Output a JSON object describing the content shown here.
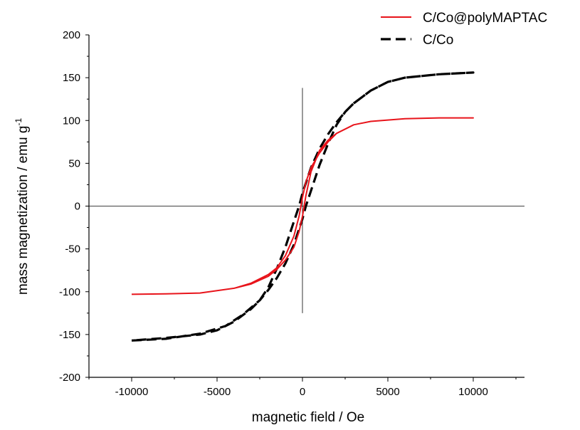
{
  "chart_data": {
    "type": "line",
    "xlabel": "magnetic field / Oe",
    "ylabel_main": "mass magnetization / emu g",
    "ylabel_sup": "-1",
    "xlim": [
      -12500,
      13000
    ],
    "ylim": [
      -200,
      200
    ],
    "x_ticks": [
      -10000,
      -5000,
      0,
      5000,
      10000
    ],
    "x_tick_labels": [
      "-10000",
      "-5000",
      "0",
      "5000",
      "10000"
    ],
    "y_ticks": [
      -200,
      -150,
      -100,
      -50,
      0,
      50,
      100,
      150,
      200
    ],
    "y_tick_labels": [
      "-200",
      "-150",
      "-100",
      "-50",
      "0",
      "50",
      "100",
      "150",
      "200"
    ],
    "zero_axes": true,
    "grid": false,
    "legend_position": "top-right",
    "series": [
      {
        "name": "C/Co@polyMAPTAC",
        "color": "#e8141b",
        "style": "solid",
        "upper_branch": [
          [
            -10000,
            -103
          ],
          [
            -8000,
            -102.5
          ],
          [
            -6000,
            -101.5
          ],
          [
            -4000,
            -96
          ],
          [
            -3000,
            -90
          ],
          [
            -2000,
            -80
          ],
          [
            -1500,
            -72
          ],
          [
            -1000,
            -58
          ],
          [
            -500,
            -35
          ],
          [
            -200,
            -12
          ],
          [
            0,
            10
          ],
          [
            200,
            28
          ],
          [
            500,
            45
          ],
          [
            1000,
            62
          ],
          [
            1500,
            75
          ],
          [
            2000,
            85
          ],
          [
            3000,
            95
          ],
          [
            4000,
            99
          ],
          [
            6000,
            102
          ],
          [
            8000,
            103
          ],
          [
            10000,
            103
          ]
        ],
        "lower_branch": [
          [
            10000,
            103
          ],
          [
            8000,
            103
          ],
          [
            6000,
            102
          ],
          [
            4000,
            99
          ],
          [
            3000,
            95
          ],
          [
            2000,
            85
          ],
          [
            1500,
            77
          ],
          [
            1000,
            65
          ],
          [
            500,
            40
          ],
          [
            200,
            12
          ],
          [
            0,
            -12
          ],
          [
            -200,
            -30
          ],
          [
            -500,
            -48
          ],
          [
            -1000,
            -63
          ],
          [
            -1500,
            -74
          ],
          [
            -2000,
            -82
          ],
          [
            -3000,
            -91
          ],
          [
            -4000,
            -96
          ],
          [
            -6000,
            -101.5
          ],
          [
            -8000,
            -102.5
          ],
          [
            -10000,
            -103
          ]
        ]
      },
      {
        "name": "C/Co",
        "color": "#000000",
        "style": "dashed",
        "upper_branch": [
          [
            -10000,
            -157
          ],
          [
            -8000,
            -155
          ],
          [
            -6000,
            -149
          ],
          [
            -4500,
            -140
          ],
          [
            -3500,
            -127
          ],
          [
            -2500,
            -110
          ],
          [
            -2000,
            -98
          ],
          [
            -1500,
            -84
          ],
          [
            -1000,
            -67
          ],
          [
            -500,
            -45
          ],
          [
            0,
            -15
          ],
          [
            200,
            0
          ],
          [
            500,
            18
          ],
          [
            1000,
            48
          ],
          [
            1500,
            73
          ],
          [
            2000,
            95
          ],
          [
            2500,
            110
          ],
          [
            3000,
            120
          ],
          [
            4000,
            135
          ],
          [
            5000,
            145
          ],
          [
            6000,
            150
          ],
          [
            8000,
            154
          ],
          [
            10000,
            156
          ]
        ],
        "lower_branch": [
          [
            10000,
            156
          ],
          [
            8000,
            154
          ],
          [
            6000,
            150
          ],
          [
            5000,
            145
          ],
          [
            4000,
            135
          ],
          [
            3000,
            120
          ],
          [
            2500,
            110
          ],
          [
            2000,
            98
          ],
          [
            1500,
            84
          ],
          [
            1000,
            67
          ],
          [
            500,
            45
          ],
          [
            0,
            15
          ],
          [
            -200,
            0
          ],
          [
            -500,
            -18
          ],
          [
            -1000,
            -48
          ],
          [
            -1500,
            -73
          ],
          [
            -2000,
            -95
          ],
          [
            -2500,
            -110
          ],
          [
            -3000,
            -120
          ],
          [
            -4000,
            -135
          ],
          [
            -5000,
            -145
          ],
          [
            -6000,
            -150
          ],
          [
            -8000,
            -154
          ],
          [
            -10000,
            -157
          ]
        ]
      }
    ]
  }
}
